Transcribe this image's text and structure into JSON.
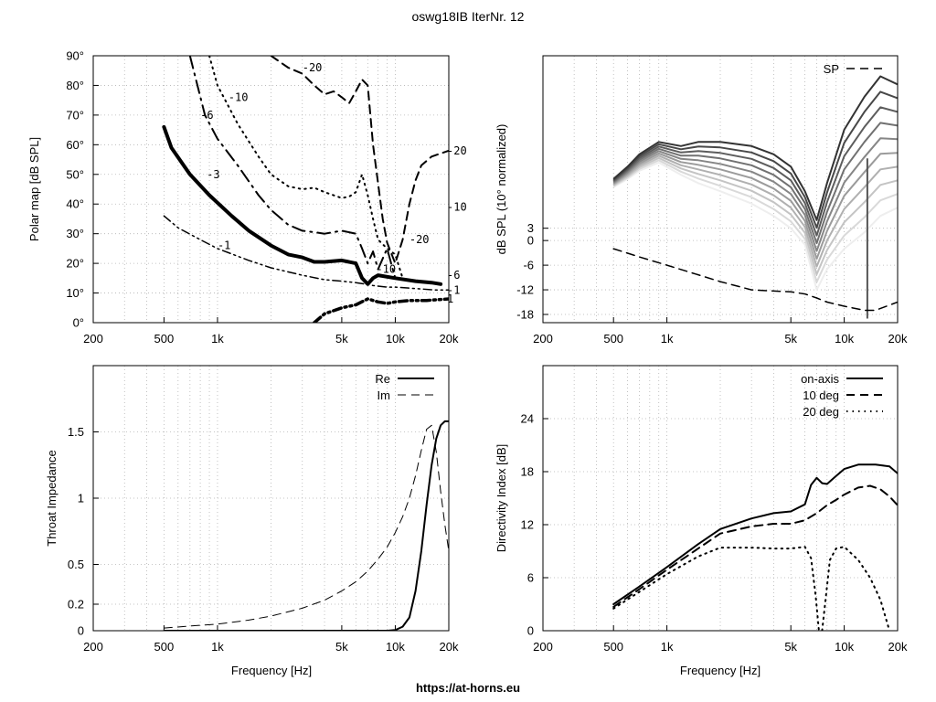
{
  "figure": {
    "title": "oswg18IB IterNr. 12",
    "footer": "https://at-horns.eu"
  },
  "chart_data": [
    {
      "id": "polar",
      "type": "line",
      "subtype": "contour",
      "ylabel": "Polar map [dB SPL]",
      "xscale": "log",
      "xlim": [
        200,
        20000
      ],
      "ylim": [
        0,
        90
      ],
      "xticks": [
        200,
        500,
        1000,
        5000,
        10000,
        20000
      ],
      "xtick_labels": [
        "200",
        "500",
        "1k",
        "5k",
        "10k",
        "20k"
      ],
      "yticks": [
        0,
        10,
        20,
        30,
        40,
        50,
        60,
        70,
        80,
        90
      ],
      "ytick_labels": [
        "0°",
        "10°",
        "20°",
        "30°",
        "40°",
        "50°",
        "60°",
        "70°",
        "80°",
        "90°"
      ],
      "grid": true,
      "series": [
        {
          "name": "-1",
          "style": "dashdotdot",
          "width": 1.5,
          "x": [
            500,
            600,
            800,
            1000,
            1500,
            2000,
            3000,
            4000,
            5000,
            6000,
            6800,
            7500,
            9000,
            10000,
            13000,
            17000,
            20000
          ],
          "y": [
            36,
            32,
            28,
            25,
            21,
            18.5,
            16,
            14.5,
            14,
            13.5,
            13,
            12.5,
            12,
            12,
            11.5,
            11,
            11
          ]
        },
        {
          "name": "-1",
          "style": "dashdotdot",
          "width": 3.5,
          "x": [
            3500,
            4000,
            5000,
            6000,
            7000,
            8000,
            9000,
            10000,
            12000,
            15000,
            20000
          ],
          "y": [
            0,
            3,
            5,
            6,
            8,
            7,
            6.5,
            7,
            7.5,
            7.5,
            8
          ]
        },
        {
          "name": "-3",
          "style": "solid",
          "width": 4,
          "x": [
            500,
            550,
            700,
            900,
            1200,
            1500,
            2000,
            2500,
            3000,
            3500,
            4000,
            5000,
            6000,
            6500,
            7000,
            7500,
            8000,
            10000,
            13000,
            16000,
            18000
          ],
          "y": [
            66,
            59,
            50,
            43,
            36,
            31,
            26,
            23,
            22,
            20.5,
            20.5,
            21,
            20,
            15,
            13,
            15,
            16,
            15,
            14,
            13.5,
            13
          ]
        },
        {
          "name": "-6",
          "style": "dashdot",
          "width": 2,
          "x": [
            700,
            850,
            1000,
            1300,
            1700,
            2000,
            2500,
            3000,
            3500,
            4000,
            5000,
            6000,
            6500,
            7000,
            7500,
            8000,
            9000,
            10000
          ],
          "y": [
            90,
            70,
            62,
            53,
            43,
            38,
            33,
            31,
            30.5,
            30,
            31,
            30,
            25,
            20,
            24,
            18,
            25,
            15
          ]
        },
        {
          "name": "-10",
          "style": "dotted",
          "width": 2,
          "x": [
            900,
            1000,
            1300,
            1700,
            2000,
            2500,
            3000,
            3500,
            4000,
            5000,
            5500,
            6000,
            6500,
            7000,
            7500,
            8000,
            9000,
            10000,
            11000
          ],
          "y": [
            90,
            80,
            67,
            56,
            50,
            46,
            45,
            45.5,
            44,
            42,
            42.5,
            44,
            50,
            43,
            35,
            28,
            25,
            23,
            15
          ]
        },
        {
          "name": "-20",
          "style": "dashed",
          "width": 2,
          "x": [
            2000,
            2500,
            3000,
            3500,
            4000,
            4500,
            5000,
            5500,
            6000,
            6500,
            7000,
            7500,
            8000,
            8500,
            9000,
            10000,
            11000,
            12000,
            13000,
            14000,
            16000,
            20000
          ],
          "y": [
            90,
            86,
            84,
            80,
            77,
            78,
            76,
            74,
            78,
            82,
            80,
            60,
            47,
            35,
            27,
            20,
            28,
            40,
            48,
            53,
            56,
            58
          ]
        }
      ],
      "labels": [
        {
          "text": "-1",
          "x": 1000,
          "y": 26
        },
        {
          "text": "-3",
          "x": 870,
          "y": 50
        },
        {
          "text": "-6",
          "x": 800,
          "y": 70
        },
        {
          "text": "-10",
          "x": 1150,
          "y": 76
        },
        {
          "text": "-20",
          "x": 3000,
          "y": 86
        },
        {
          "text": "-20",
          "x": 20000,
          "y": 58
        },
        {
          "text": "-10",
          "x": 20000,
          "y": 39
        },
        {
          "text": "-20",
          "x": 12000,
          "y": 28
        },
        {
          "text": "-10",
          "x": 7800,
          "y": 18
        },
        {
          "text": "-6",
          "x": 20000,
          "y": 16
        },
        {
          "text": "-1",
          "x": 20000,
          "y": 11
        },
        {
          "text": "1",
          "x": 20000,
          "y": 8
        }
      ]
    },
    {
      "id": "spl",
      "type": "line",
      "ylabel": "dB SPL (10° normalized)",
      "xscale": "log",
      "xlim": [
        200,
        20000
      ],
      "ylim": [
        -20,
        45
      ],
      "xticks": [
        200,
        500,
        1000,
        5000,
        10000,
        20000
      ],
      "xtick_labels": [
        "200",
        "500",
        "1k",
        "5k",
        "10k",
        "20k"
      ],
      "yticks": [
        -18,
        -12,
        -6,
        0,
        3
      ],
      "ytick_labels": [
        "-18",
        "-12",
        "-6",
        "0",
        "3"
      ],
      "grid": true,
      "legend": {
        "position": "top-right",
        "entries": [
          "SP"
        ]
      },
      "series": [
        {
          "name": "SP",
          "style": "dashed",
          "color": "#000000",
          "x": [
            500,
            700,
            1000,
            2000,
            3000,
            5000,
            6000,
            7000,
            8000,
            10000,
            13000,
            15000,
            20000
          ],
          "y": [
            -2,
            -4,
            -6,
            -10,
            -12,
            -12.5,
            -13,
            -14,
            -15,
            -16,
            -17,
            -17,
            -15
          ]
        }
      ],
      "family": {
        "count": 10,
        "color_dark": "#333333",
        "color_light": "#eeeeee",
        "x": [
          500,
          600,
          700,
          900,
          1200,
          1500,
          2000,
          3000,
          4000,
          5000,
          6000,
          7000,
          8000,
          10000,
          13000,
          16000,
          20000
        ],
        "y_top": [
          15,
          18,
          21,
          24,
          23,
          24,
          24,
          23,
          21,
          18,
          12,
          5,
          14,
          27,
          35,
          40,
          38
        ],
        "y_bottom": [
          13,
          15,
          17,
          19,
          16,
          14,
          12,
          9,
          6,
          3,
          -1,
          -12,
          -7,
          -2,
          2,
          6,
          8
        ],
        "notch_x": 13500,
        "notch_y": -19
      }
    },
    {
      "id": "impedance",
      "type": "line",
      "xlabel": "Frequency [Hz]",
      "ylabel": "Throat Impedance",
      "xscale": "log",
      "xlim": [
        200,
        20000
      ],
      "ylim": [
        0,
        2.0
      ],
      "xticks": [
        200,
        500,
        1000,
        5000,
        10000,
        20000
      ],
      "xtick_labels": [
        "200",
        "500",
        "1k",
        "5k",
        "10k",
        "20k"
      ],
      "yticks": [
        0,
        0.2,
        0.5,
        1,
        1.5
      ],
      "ytick_labels": [
        "0",
        "0.2",
        "0.5",
        "1",
        "1.5"
      ],
      "grid": true,
      "legend": {
        "position": "top-right",
        "entries": [
          "Re",
          "Im"
        ]
      },
      "series": [
        {
          "name": "Re",
          "style": "solid",
          "width": 2,
          "x": [
            500,
            1000,
            5000,
            9000,
            10000,
            11000,
            12000,
            13000,
            14000,
            15000,
            16000,
            17000,
            18000,
            19000,
            20000
          ],
          "y": [
            0,
            0,
            0,
            0,
            0.005,
            0.03,
            0.1,
            0.3,
            0.6,
            0.95,
            1.25,
            1.45,
            1.55,
            1.58,
            1.58
          ]
        },
        {
          "name": "Im",
          "style": "dashed",
          "width": 1,
          "x": [
            500,
            700,
            1000,
            1500,
            2000,
            3000,
            4000,
            5000,
            6000,
            7000,
            8000,
            9000,
            10000,
            11000,
            12000,
            13000,
            14000,
            15000,
            16000,
            17000,
            18000,
            19000,
            20000
          ],
          "y": [
            0.02,
            0.035,
            0.05,
            0.08,
            0.11,
            0.17,
            0.23,
            0.3,
            0.37,
            0.45,
            0.54,
            0.63,
            0.74,
            0.86,
            1.0,
            1.17,
            1.36,
            1.52,
            1.55,
            1.35,
            1.05,
            0.8,
            0.6
          ]
        }
      ]
    },
    {
      "id": "di",
      "type": "line",
      "xlabel": "Frequency [Hz]",
      "ylabel": "Directivity Index [dB]",
      "xscale": "log",
      "xlim": [
        200,
        20000
      ],
      "ylim": [
        0,
        30
      ],
      "xticks": [
        200,
        500,
        1000,
        5000,
        10000,
        20000
      ],
      "xtick_labels": [
        "200",
        "500",
        "1k",
        "5k",
        "10k",
        "20k"
      ],
      "yticks": [
        0,
        6,
        12,
        18,
        24
      ],
      "ytick_labels": [
        "0",
        "6",
        "12",
        "18",
        "24"
      ],
      "grid": true,
      "legend": {
        "position": "top-right",
        "entries": [
          "on-axis",
          "10 deg",
          "20 deg"
        ]
      },
      "series": [
        {
          "name": "on-axis",
          "style": "solid",
          "width": 2,
          "x": [
            500,
            700,
            1000,
            1500,
            2000,
            3000,
            4000,
            5000,
            6000,
            6500,
            7000,
            7500,
            8000,
            9000,
            10000,
            12000,
            15000,
            18000,
            20000
          ],
          "y": [
            3,
            5,
            7.2,
            9.8,
            11.5,
            12.7,
            13.3,
            13.5,
            14.3,
            16.5,
            17.3,
            16.7,
            16.6,
            17.5,
            18.3,
            18.8,
            18.8,
            18.6,
            17.8
          ]
        },
        {
          "name": "10 deg",
          "style": "dashed",
          "width": 2,
          "x": [
            500,
            700,
            1000,
            1500,
            2000,
            3000,
            4000,
            5000,
            6000,
            7000,
            8000,
            9000,
            10000,
            12000,
            14000,
            16000,
            18000,
            20000
          ],
          "y": [
            2.7,
            4.7,
            6.9,
            9.3,
            11,
            11.8,
            12.1,
            12.1,
            12.5,
            13.3,
            14.2,
            14.8,
            15.4,
            16.2,
            16.4,
            16,
            15.2,
            14.2
          ]
        },
        {
          "name": "20 deg",
          "style": "dotted",
          "width": 2,
          "x": [
            500,
            700,
            1000,
            1500,
            2000,
            3000,
            4000,
            5000,
            6000,
            6500,
            6900,
            7200,
            7500,
            7900,
            8300,
            9000,
            10000,
            12000,
            14000,
            16000,
            18000
          ],
          "y": [
            2.5,
            4.4,
            6.4,
            8.4,
            9.4,
            9.4,
            9.3,
            9.3,
            9.5,
            8.2,
            4,
            0,
            0,
            4,
            8,
            9.3,
            9.5,
            8,
            6,
            3.5,
            0
          ]
        }
      ]
    }
  ]
}
